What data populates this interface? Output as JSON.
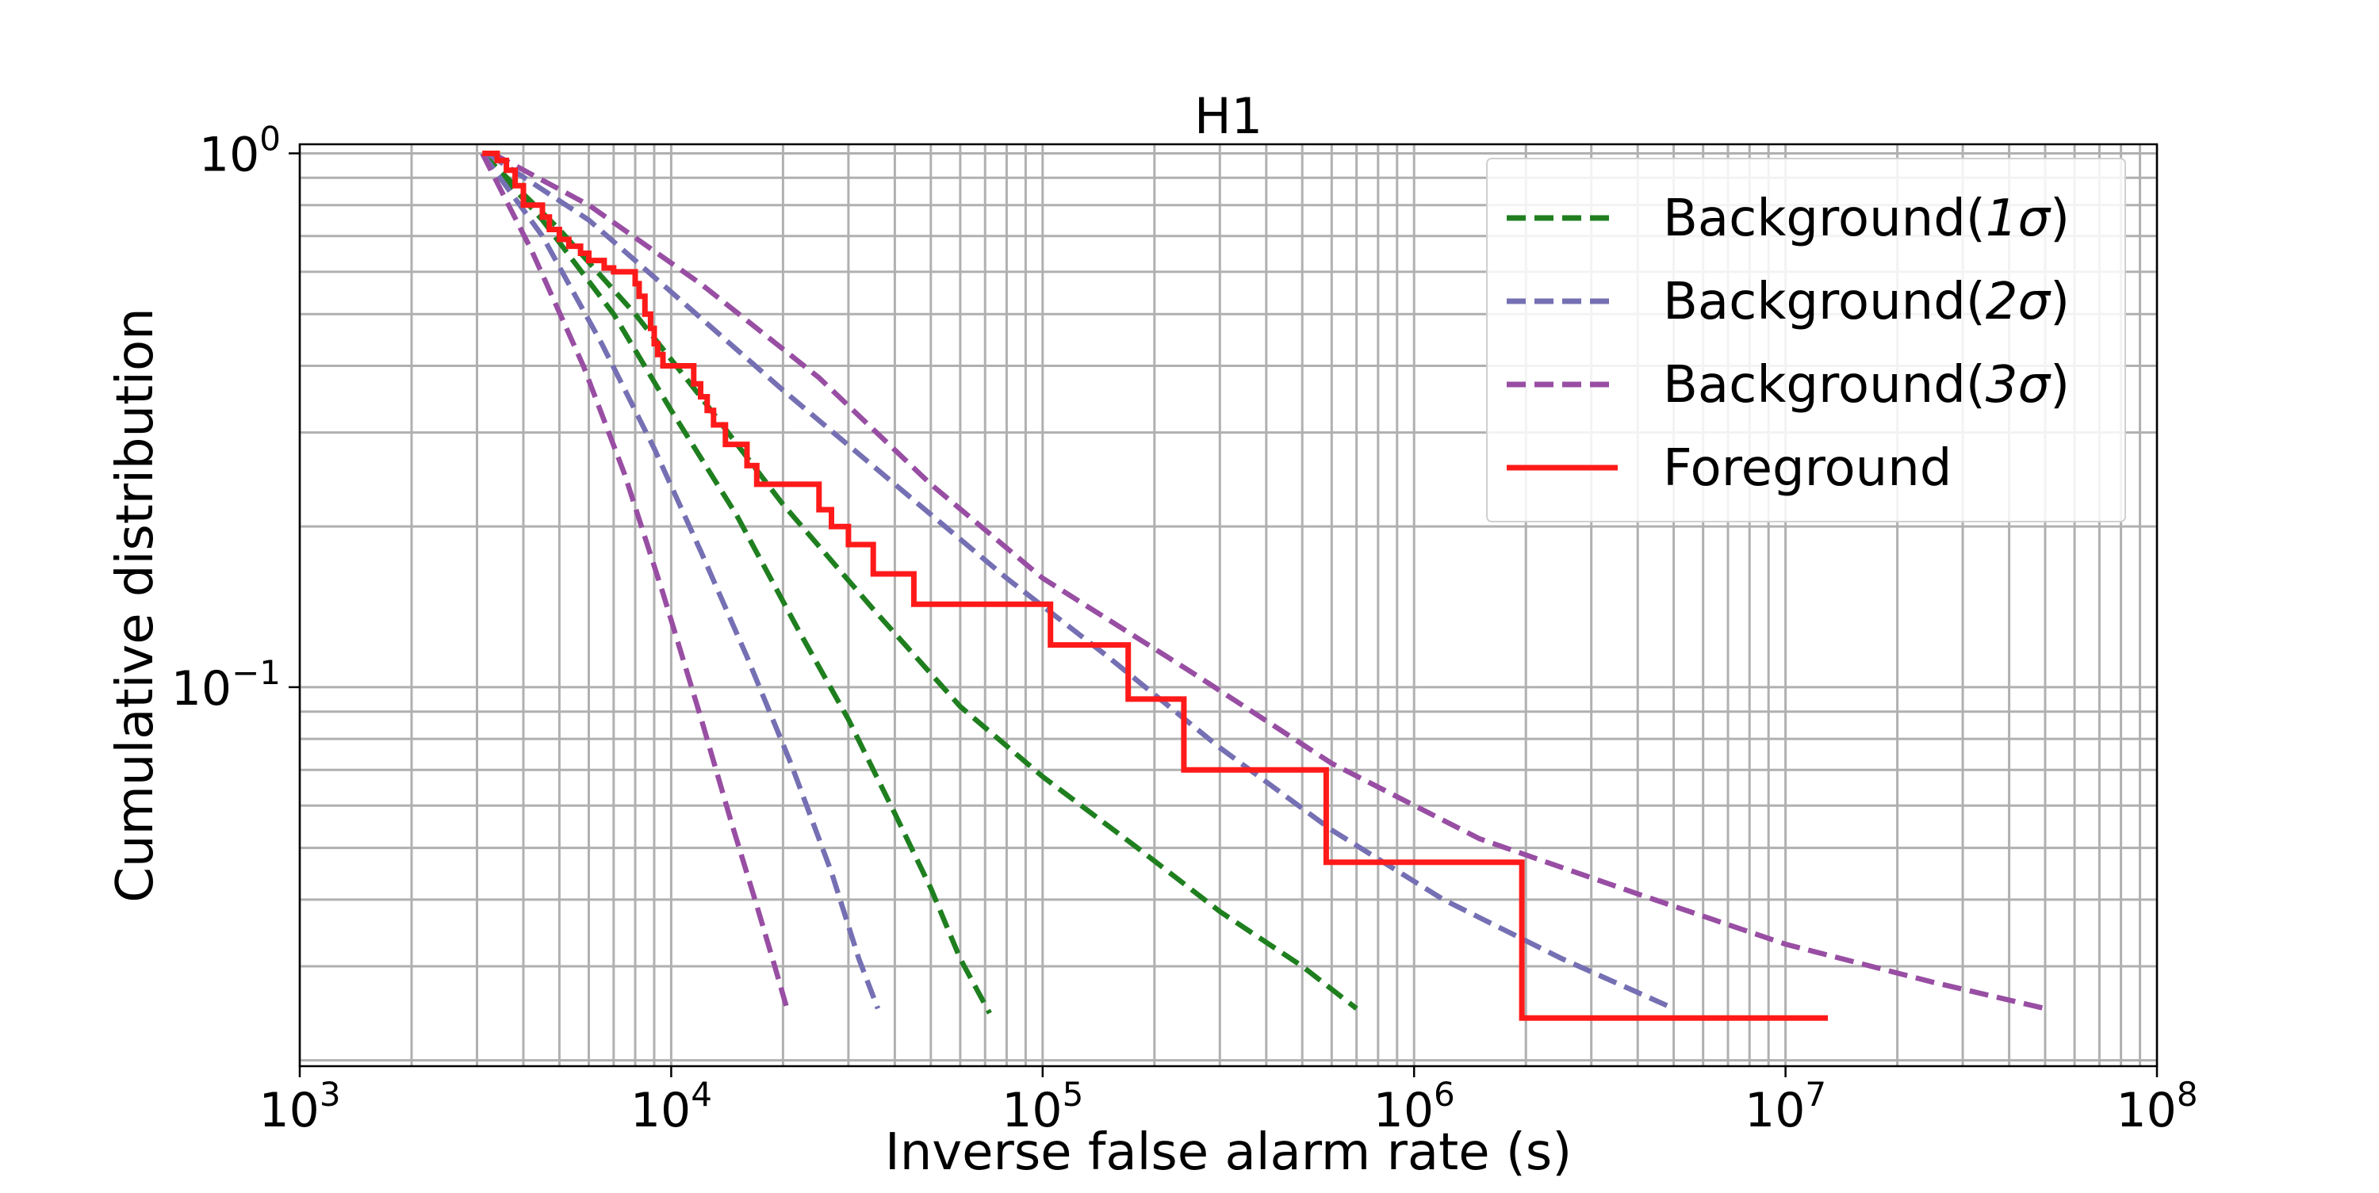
{
  "chart_data": {
    "type": "line",
    "title": "H1",
    "xlabel": "Inverse false alarm rate (s)",
    "ylabel": "Cumulative distribution",
    "xscale": "log",
    "yscale": "log",
    "xlim": [
      1000,
      100000000
    ],
    "ylim": [
      0.0195,
      1.04
    ],
    "grid": true,
    "grid_minor": true,
    "legend_position": "top-right",
    "x_ticks": [
      {
        "value": 1000,
        "base": "10",
        "exp": "3"
      },
      {
        "value": 10000,
        "base": "10",
        "exp": "4"
      },
      {
        "value": 100000,
        "base": "10",
        "exp": "5"
      },
      {
        "value": 1000000,
        "base": "10",
        "exp": "6"
      },
      {
        "value": 10000000,
        "base": "10",
        "exp": "7"
      },
      {
        "value": 100000000,
        "base": "10",
        "exp": "8"
      }
    ],
    "y_ticks": [
      {
        "value": 1,
        "base": "10",
        "exp": "0"
      },
      {
        "value": 0.1,
        "base": "10",
        "exp": "−1"
      }
    ],
    "legend": [
      {
        "label_prefix": "Background(",
        "label_sigma": "1σ",
        "label_suffix": ")",
        "color": "#1f7f1f",
        "style": "dashed"
      },
      {
        "label_prefix": "Background(",
        "label_sigma": "2σ",
        "label_suffix": ")",
        "color": "#7570b3",
        "style": "dashed"
      },
      {
        "label_prefix": "Background(",
        "label_sigma": "3σ",
        "label_suffix": ")",
        "color": "#984ea3",
        "style": "dashed"
      },
      {
        "label_prefix": "Foreground",
        "label_sigma": "",
        "label_suffix": "",
        "color": "#ff1a1a",
        "style": "solid"
      }
    ],
    "series": [
      {
        "group": "Background(1σ)",
        "color": "#1f7f1f",
        "style": "dashed",
        "x": [
          3100,
          4500,
          7000,
          10000,
          15000,
          22000,
          30000,
          40000,
          50000,
          60000,
          72000
        ],
        "y": [
          1.0,
          0.75,
          0.5,
          0.33,
          0.21,
          0.128,
          0.087,
          0.058,
          0.042,
          0.031,
          0.0245
        ]
      },
      {
        "group": "Background(1σ)",
        "color": "#1f7f1f",
        "style": "dashed",
        "x": [
          3100,
          5000,
          8000,
          12000,
          20000,
          35000,
          60000,
          100000,
          180000,
          300000,
          500000,
          700000
        ],
        "y": [
          1.0,
          0.72,
          0.5,
          0.35,
          0.22,
          0.14,
          0.092,
          0.068,
          0.05,
          0.038,
          0.03,
          0.025
        ]
      },
      {
        "group": "Background(2σ)",
        "color": "#7570b3",
        "style": "dashed",
        "x": [
          3100,
          4500,
          6500,
          9000,
          12000,
          16000,
          21000,
          27000,
          32000,
          36000
        ],
        "y": [
          1.0,
          0.7,
          0.44,
          0.28,
          0.18,
          0.114,
          0.072,
          0.045,
          0.031,
          0.025
        ]
      },
      {
        "group": "Background(2σ)",
        "color": "#7570b3",
        "style": "dashed",
        "x": [
          3200,
          6000,
          10000,
          20000,
          40000,
          80000,
          150000,
          300000,
          600000,
          1200000,
          2500000,
          5000000
        ],
        "y": [
          1.0,
          0.75,
          0.55,
          0.36,
          0.24,
          0.16,
          0.114,
          0.077,
          0.054,
          0.04,
          0.031,
          0.025
        ]
      },
      {
        "group": "Background(3σ)",
        "color": "#984ea3",
        "style": "dashed",
        "x": [
          3100,
          4200,
          5800,
          7500,
          9500,
          12000,
          14500,
          17000,
          19000,
          20500
        ],
        "y": [
          1.0,
          0.66,
          0.4,
          0.25,
          0.15,
          0.088,
          0.056,
          0.039,
          0.03,
          0.025
        ]
      },
      {
        "group": "Background(3σ)",
        "color": "#984ea3",
        "style": "dashed",
        "x": [
          3300,
          6000,
          12000,
          25000,
          50000,
          100000,
          250000,
          600000,
          1500000,
          4000000,
          10000000,
          25000000,
          50000000
        ],
        "y": [
          1.0,
          0.8,
          0.57,
          0.38,
          0.24,
          0.16,
          0.107,
          0.072,
          0.052,
          0.041,
          0.033,
          0.028,
          0.025
        ]
      },
      {
        "group": "Foreground",
        "color": "#ff1a1a",
        "style": "solid",
        "x": [
          3100,
          3400,
          3600,
          3800,
          4000,
          4500,
          4700,
          5000,
          5300,
          5700,
          6000,
          6600,
          7000,
          8000,
          8200,
          8500,
          8800,
          9000,
          9200,
          9500,
          11500,
          12000,
          12500,
          13000,
          14000,
          16000,
          17000,
          18000,
          25000,
          27000,
          30000,
          35000,
          45000,
          105000,
          170000,
          240000,
          580000,
          1950000,
          13000000
        ],
        "y": [
          1.0,
          0.97,
          0.93,
          0.87,
          0.8,
          0.76,
          0.72,
          0.69,
          0.67,
          0.65,
          0.63,
          0.61,
          0.6,
          0.57,
          0.54,
          0.5,
          0.47,
          0.44,
          0.42,
          0.4,
          0.37,
          0.35,
          0.33,
          0.31,
          0.285,
          0.26,
          0.24,
          0.24,
          0.215,
          0.2,
          0.185,
          0.163,
          0.143,
          0.12,
          0.095,
          0.07,
          0.047,
          0.024,
          0.024
        ]
      }
    ]
  }
}
